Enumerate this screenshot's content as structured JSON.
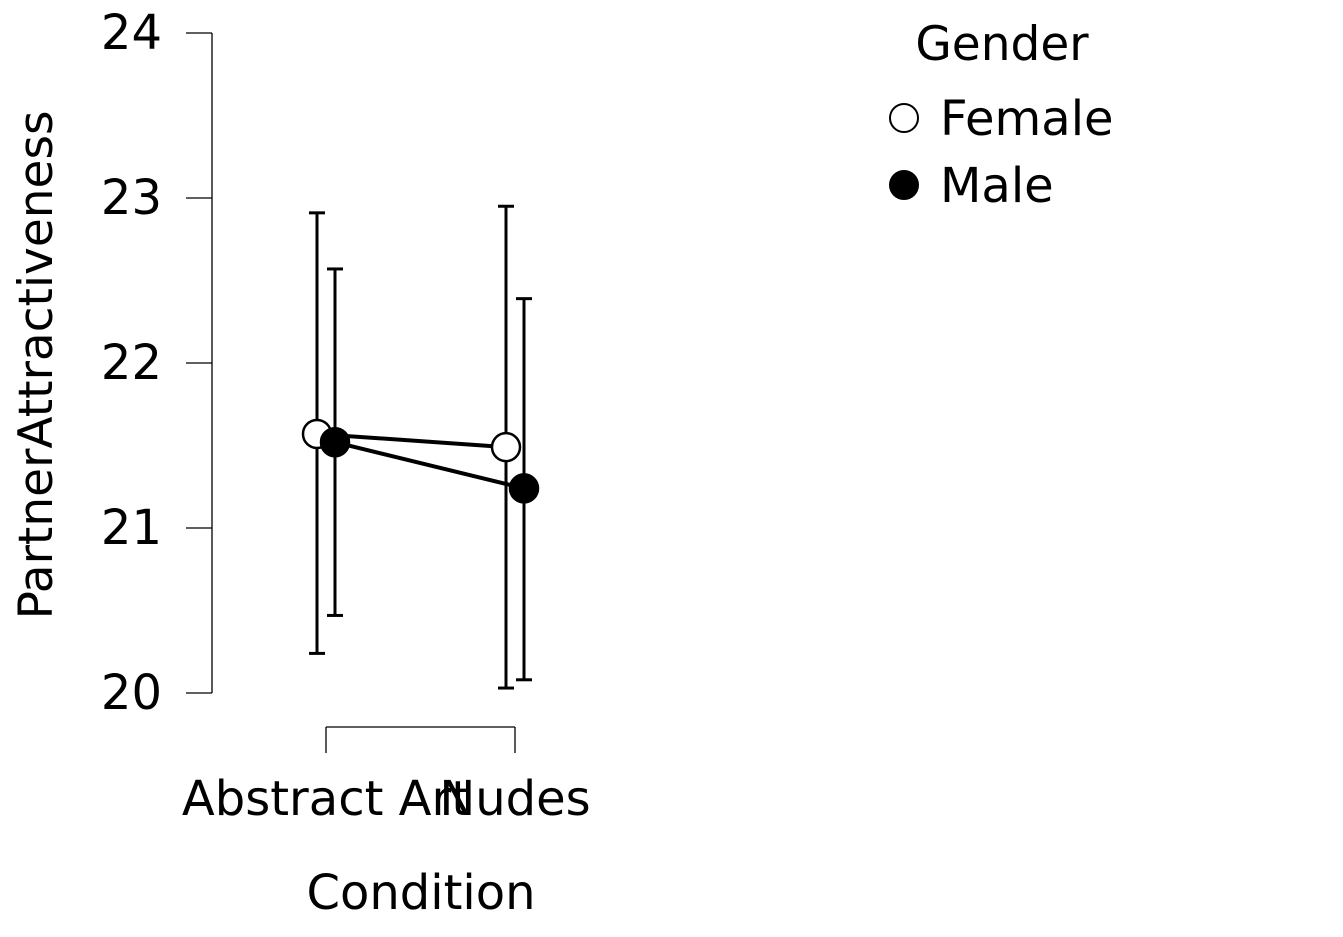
{
  "chart_data": {
    "type": "line",
    "xlabel": "Condition",
    "ylabel": "PartnerAttractiveness",
    "categories": [
      "Abstract Art",
      "Nudes"
    ],
    "yticks": [
      "20",
      "21",
      "22",
      "23",
      "24"
    ],
    "ylim": [
      20,
      24
    ],
    "grid": false,
    "error_bars": true,
    "legend": {
      "title": "Gender",
      "placement": "top-right"
    },
    "series": [
      {
        "name": "Female",
        "marker": "open-circle",
        "color": "#ffffff",
        "values": [
          21.57,
          21.49
        ],
        "lower": [
          20.24,
          20.03
        ],
        "upper": [
          22.91,
          22.95
        ]
      },
      {
        "name": "Male",
        "marker": "filled-circle",
        "color": "#000000",
        "values": [
          21.52,
          21.24
        ],
        "lower": [
          20.47,
          20.08
        ],
        "upper": [
          22.57,
          22.39
        ]
      }
    ]
  }
}
